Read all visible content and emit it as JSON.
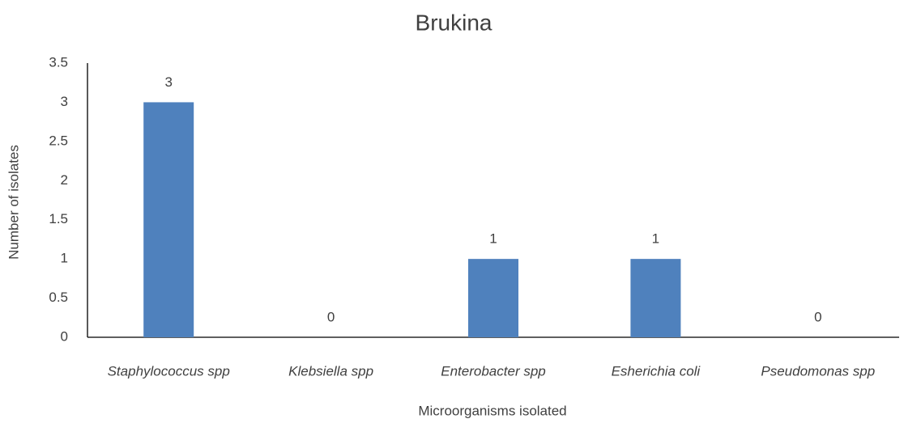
{
  "chart_data": {
    "type": "bar",
    "title": "Brukina",
    "categories": [
      "Staphylococcus spp",
      "Klebsiella spp",
      "Enterobacter spp",
      "Esherichia coli",
      "Pseudomonas spp"
    ],
    "values": [
      3,
      0,
      1,
      1,
      0
    ],
    "color": "#4f81bd",
    "x_label": "Microorganisms isolated",
    "y_label": "Number of isolates",
    "ylim": [
      0,
      3.5
    ],
    "yticks": [
      0,
      0.5,
      1,
      1.5,
      2,
      2.5,
      3,
      3.5
    ],
    "grid": false
  }
}
